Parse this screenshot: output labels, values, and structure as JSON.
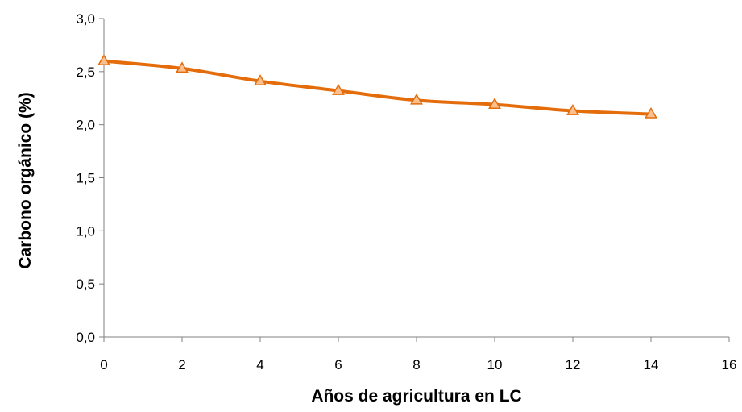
{
  "chart_data": {
    "type": "line",
    "title": "",
    "xlabel": "Años de agricultura en LC",
    "ylabel": "Carbono orgánico (%)",
    "xlim": [
      0,
      16
    ],
    "ylim": [
      0,
      3
    ],
    "x_ticks": [
      "0",
      "2",
      "4",
      "6",
      "8",
      "10",
      "12",
      "14",
      "16"
    ],
    "y_ticks": [
      "0,0",
      "0,5",
      "1,0",
      "1,5",
      "2,0",
      "2,5",
      "3,0"
    ],
    "grid": false,
    "legend": "none",
    "series": [
      {
        "x": [
          0,
          2,
          4,
          6,
          8,
          10,
          12,
          14
        ],
        "values": [
          2.6,
          2.53,
          2.41,
          2.32,
          2.23,
          2.19,
          2.13,
          2.1
        ],
        "line_color": "#e46c0a",
        "marker": "triangle",
        "marker_fill": "#fac090",
        "marker_stroke": "#e46c0a"
      }
    ]
  }
}
